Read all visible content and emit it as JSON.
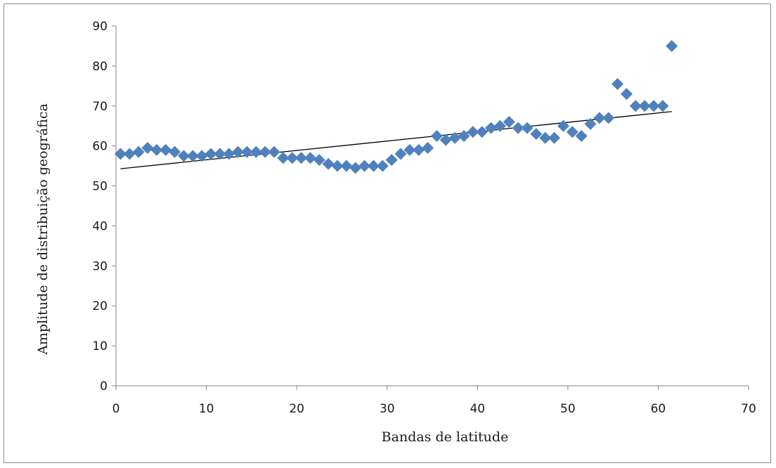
{
  "chart_data": {
    "type": "scatter",
    "title": "",
    "xlabel": "Bandas de latitude",
    "ylabel": "Amplitude de distribuição geográfica",
    "xlim": [
      0,
      70
    ],
    "ylim": [
      0,
      90
    ],
    "xticks": [
      0,
      10,
      20,
      30,
      40,
      50,
      60,
      70
    ],
    "yticks": [
      0,
      10,
      20,
      30,
      40,
      50,
      60,
      70,
      80,
      90
    ],
    "grid": false,
    "legend": "none",
    "marker": "diamond",
    "marker_color": "#4f81bd",
    "trendline_color": "#000000",
    "series": [
      {
        "x": [
          0.5,
          1.5,
          2.5,
          3.5,
          4.5,
          5.5,
          6.5,
          7.5,
          8.5,
          9.5,
          10.5,
          11.5,
          12.5,
          13.5,
          14.5,
          15.5,
          16.5,
          17.5,
          18.5,
          19.5,
          20.5,
          21.5,
          22.5,
          23.5,
          24.5,
          25.5,
          26.5,
          27.5,
          28.5,
          29.5,
          30.5,
          31.5,
          32.5,
          33.5,
          34.5,
          35.5,
          36.5,
          37.5,
          38.5,
          39.5,
          40.5,
          41.5,
          42.5,
          43.5,
          44.5,
          45.5,
          46.5,
          47.5,
          48.5,
          49.5,
          50.5,
          51.5,
          52.5,
          53.5,
          54.5,
          55.5,
          56.5,
          57.5,
          58.5,
          59.5,
          60.5,
          61.5
        ],
        "y": [
          58,
          58,
          58.5,
          59.5,
          59,
          59,
          58.5,
          57.5,
          57.5,
          57.5,
          58,
          58,
          58,
          58.5,
          58.5,
          58.5,
          58.5,
          58.5,
          57,
          57,
          57,
          57,
          56.5,
          55.5,
          55,
          55,
          54.5,
          55,
          55,
          55,
          56.5,
          58,
          59,
          59,
          59.5,
          62.5,
          61.5,
          62,
          62.5,
          63.5,
          63.5,
          64.5,
          65,
          66,
          64.5,
          64.5,
          63,
          62,
          62,
          65,
          63.5,
          62.5,
          65.5,
          67,
          67,
          75.5,
          73,
          70,
          70,
          70,
          70,
          85
        ]
      }
    ],
    "trendline": {
      "type": "linear",
      "x": [
        0.5,
        61.5
      ],
      "y": [
        54.3,
        68.6
      ]
    }
  }
}
